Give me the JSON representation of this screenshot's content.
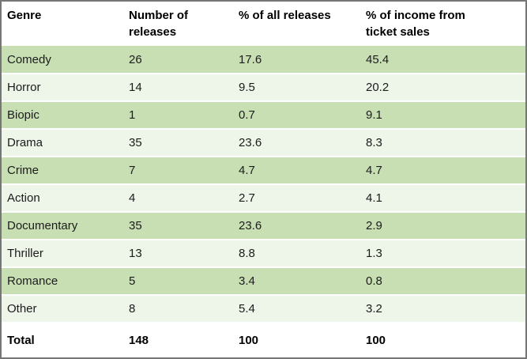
{
  "colors": {
    "row_green_dark": "#c7dfb3",
    "row_green_light": "#eef5e9",
    "border_gray": "#767676",
    "text": "#1c1c1c"
  },
  "chart_data": {
    "type": "table",
    "title": "",
    "columns": [
      "Genre",
      "Number of\nreleases",
      "% of all releases",
      "% of income from\nticket sales"
    ],
    "rows": [
      {
        "genre": "Comedy",
        "releases": "26",
        "pct_releases": "17.6",
        "pct_income": "45.4"
      },
      {
        "genre": "Horror",
        "releases": "14",
        "pct_releases": "9.5",
        "pct_income": "20.2"
      },
      {
        "genre": "Biopic",
        "releases": "1",
        "pct_releases": "0.7",
        "pct_income": "9.1"
      },
      {
        "genre": "Drama",
        "releases": "35",
        "pct_releases": "23.6",
        "pct_income": "8.3"
      },
      {
        "genre": "Crime",
        "releases": "7",
        "pct_releases": "4.7",
        "pct_income": "4.7"
      },
      {
        "genre": "Action",
        "releases": "4",
        "pct_releases": "2.7",
        "pct_income": "4.1"
      },
      {
        "genre": "Documentary",
        "releases": "35",
        "pct_releases": "23.6",
        "pct_income": "2.9"
      },
      {
        "genre": "Thriller",
        "releases": "13",
        "pct_releases": "8.8",
        "pct_income": "1.3"
      },
      {
        "genre": "Romance",
        "releases": "5",
        "pct_releases": "3.4",
        "pct_income": "0.8"
      },
      {
        "genre": "Other",
        "releases": "8",
        "pct_releases": "5.4",
        "pct_income": "3.2"
      }
    ],
    "total_row": {
      "genre": "Total",
      "releases": "148",
      "pct_releases": "100",
      "pct_income": "100"
    }
  }
}
